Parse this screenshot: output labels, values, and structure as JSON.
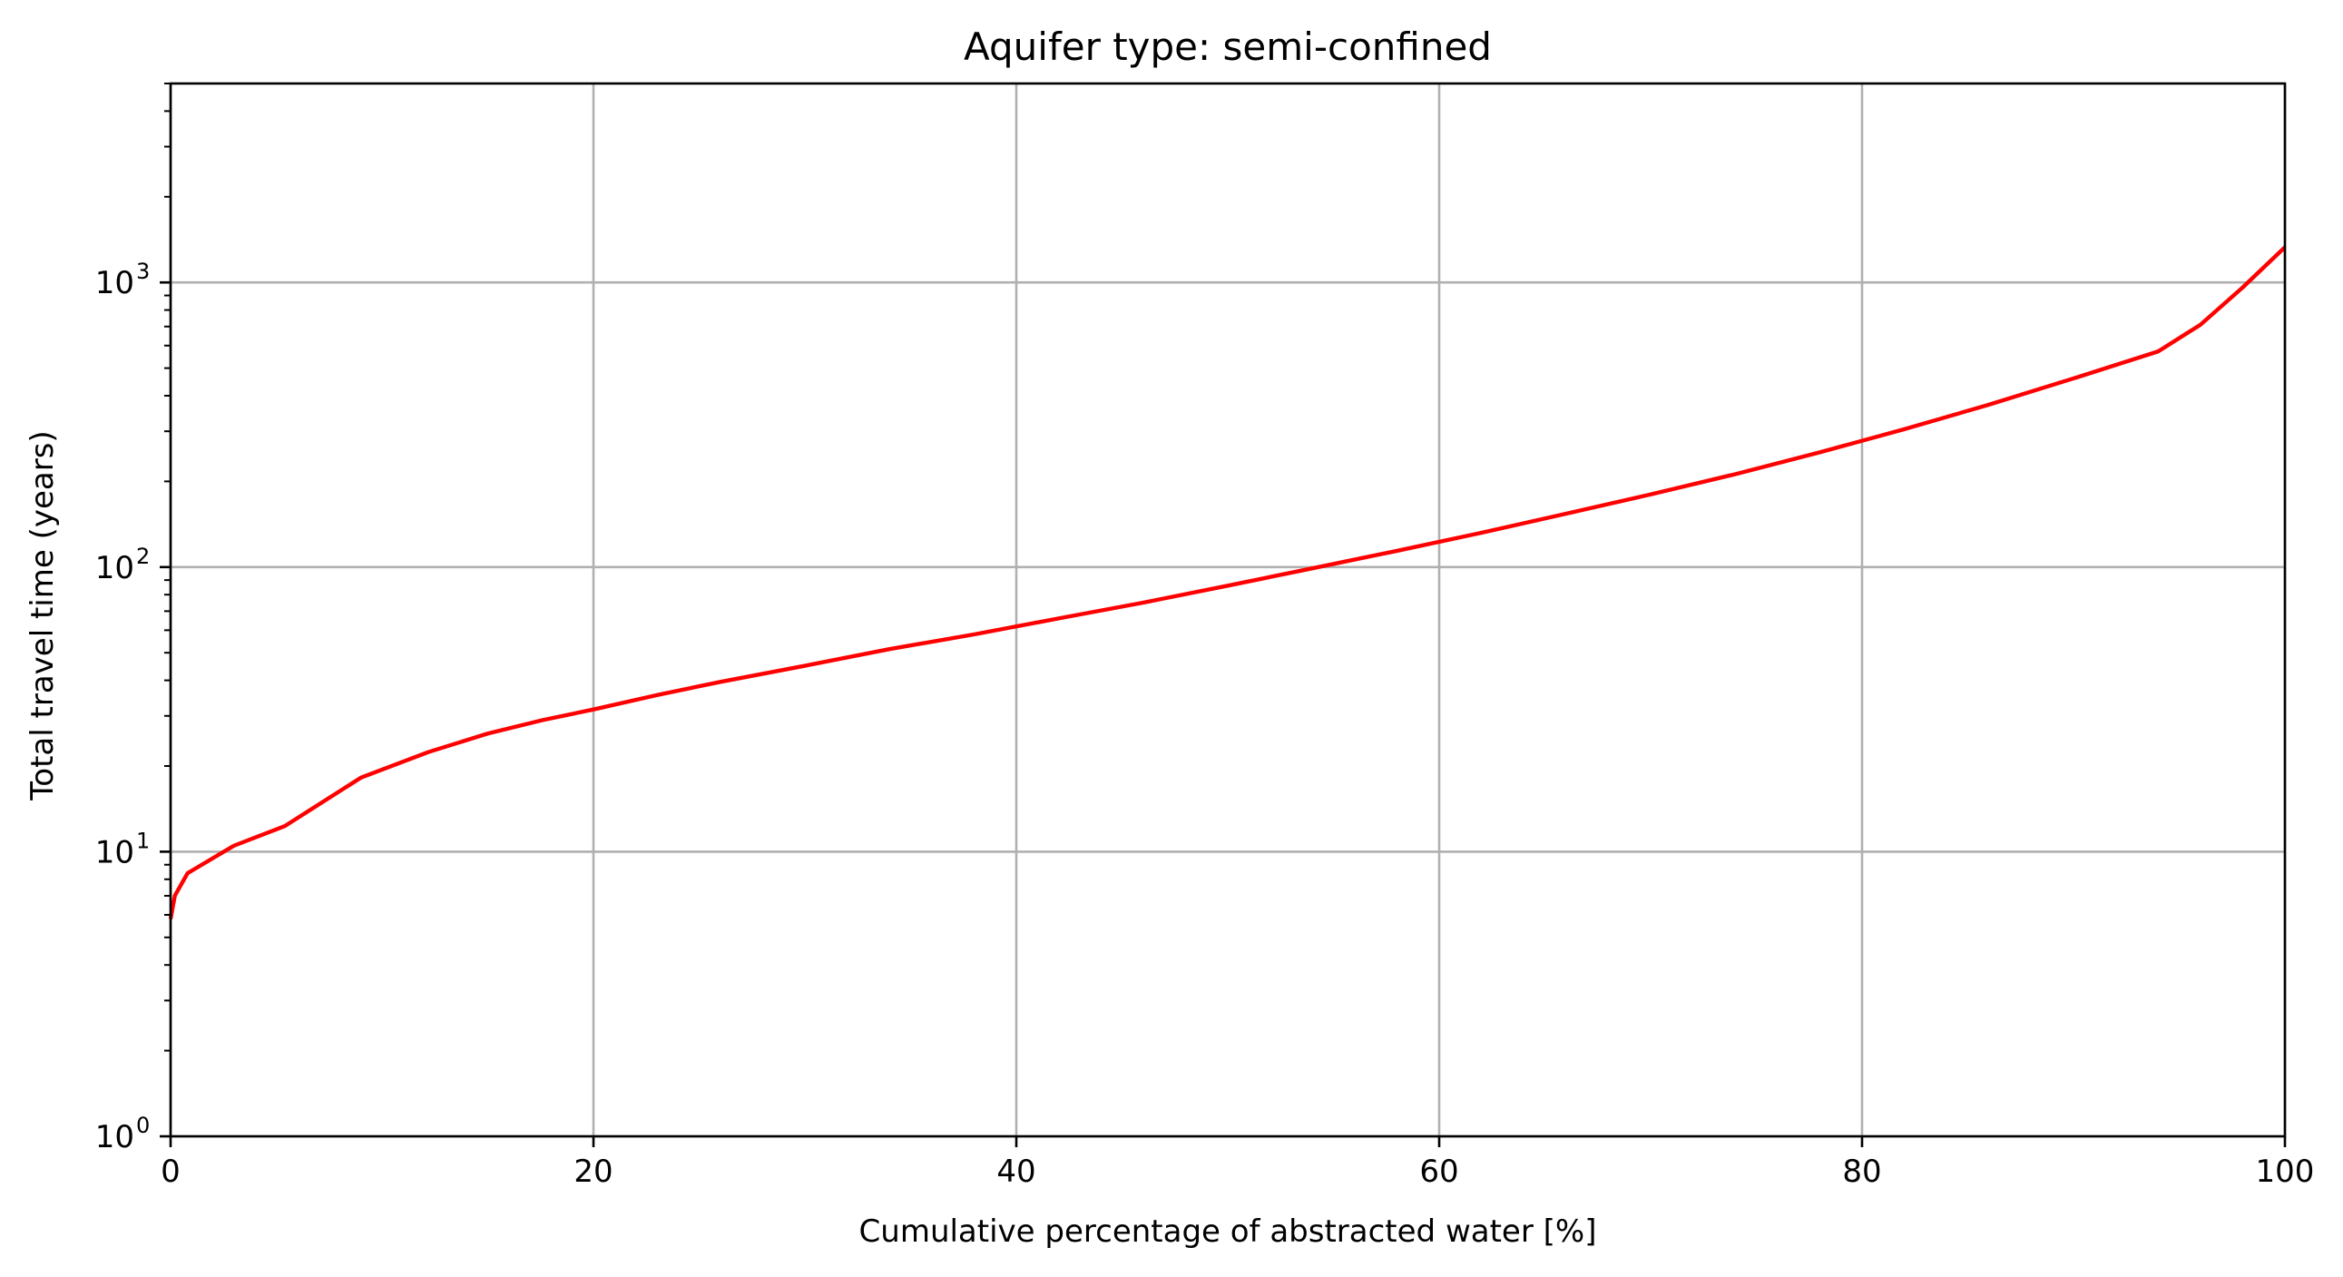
{
  "chart_data": {
    "type": "line",
    "title": "Aquifer type: semi-confined",
    "xlabel": "Cumulative percentage of abstracted water [%]",
    "ylabel": "Total travel time (years)",
    "xlim": [
      0,
      100
    ],
    "ylim": [
      1,
      5000
    ],
    "yscale": "log",
    "grid": true,
    "x_ticks": [
      {
        "value": 0,
        "label": "0"
      },
      {
        "value": 20,
        "label": "20"
      },
      {
        "value": 40,
        "label": "40"
      },
      {
        "value": 60,
        "label": "60"
      },
      {
        "value": 80,
        "label": "80"
      },
      {
        "value": 100,
        "label": "100"
      }
    ],
    "y_ticks": [
      {
        "value": 1,
        "base": "10",
        "exp": "0"
      },
      {
        "value": 10,
        "base": "10",
        "exp": "1"
      },
      {
        "value": 100,
        "base": "10",
        "exp": "2"
      },
      {
        "value": 1000,
        "base": "10",
        "exp": "3"
      }
    ],
    "series": [
      {
        "color": "#ff0000",
        "x": [
          0,
          0.2,
          0.8,
          3,
          5.4,
          9,
          12.2,
          15,
          17.6,
          20,
          23,
          26,
          30,
          34,
          38,
          42,
          46,
          50,
          54,
          58,
          62,
          66,
          70,
          74,
          78,
          82,
          86,
          90,
          94,
          96,
          98,
          100
        ],
        "y": [
          5.8,
          7.0,
          8.4,
          10.5,
          12.3,
          18.2,
          22.4,
          26.0,
          29.0,
          31.6,
          35.5,
          39.5,
          45.0,
          51.5,
          58.0,
          66.0,
          75.0,
          86.0,
          99.0,
          114.0,
          132.0,
          154.0,
          180.0,
          212.0,
          253.0,
          305.0,
          372.0,
          460.0,
          572.0,
          710.0,
          960.0,
          1330.0
        ]
      }
    ]
  },
  "colors": {
    "line": "#ff0000",
    "grid": "#b0b0b0",
    "axes": "#000000",
    "background": "#ffffff"
  }
}
